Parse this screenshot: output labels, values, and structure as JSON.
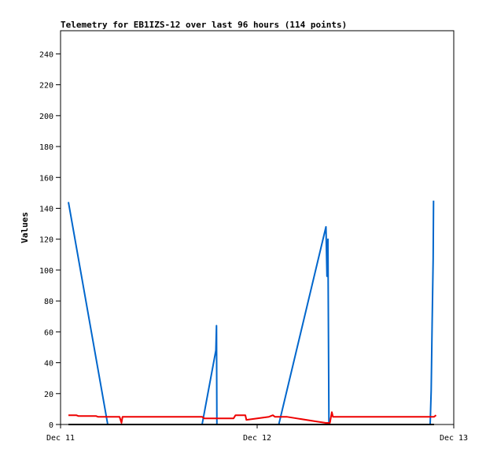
{
  "chart_data": {
    "type": "line",
    "title": "Telemetry for EB1IZS-12 over last 96 hours (114 points)",
    "xlabel": "",
    "ylabel": "Values",
    "ylim": [
      0,
      255
    ],
    "yticks": [
      0,
      20,
      40,
      60,
      80,
      100,
      120,
      140,
      160,
      180,
      200,
      220,
      240
    ],
    "xlim": [
      0,
      2
    ],
    "xticks": [
      {
        "value": 0,
        "label": "Dec 11"
      },
      {
        "value": 1,
        "label": "Dec 12"
      },
      {
        "value": 2,
        "label": "Dec 13"
      }
    ],
    "grid": false,
    "series": [
      {
        "color": "#0066cc",
        "points": [
          [
            0.04,
            144
          ],
          [
            0.24,
            0
          ],
          [
            0.72,
            0
          ],
          [
            0.79,
            48
          ],
          [
            0.793,
            64
          ],
          [
            0.795,
            0
          ],
          [
            1.11,
            0
          ],
          [
            1.35,
            128
          ],
          [
            1.355,
            96
          ],
          [
            1.36,
            120
          ],
          [
            1.365,
            0
          ],
          [
            1.39,
            0
          ],
          [
            1.88,
            0
          ],
          [
            1.885,
            22
          ],
          [
            1.89,
            65
          ],
          [
            1.895,
            107
          ],
          [
            1.897,
            145
          ]
        ]
      },
      {
        "color": "#ee0000",
        "points": [
          [
            0.04,
            6
          ],
          [
            0.08,
            6
          ],
          [
            0.09,
            5.5
          ],
          [
            0.18,
            5.5
          ],
          [
            0.19,
            5
          ],
          [
            0.3,
            5
          ],
          [
            0.31,
            1
          ],
          [
            0.315,
            5
          ],
          [
            0.72,
            5
          ],
          [
            0.73,
            4
          ],
          [
            0.88,
            4
          ],
          [
            0.89,
            6
          ],
          [
            0.94,
            6
          ],
          [
            0.945,
            3
          ],
          [
            1.06,
            5
          ],
          [
            1.08,
            6
          ],
          [
            1.09,
            5
          ],
          [
            1.15,
            5
          ],
          [
            1.2,
            4
          ],
          [
            1.3,
            2
          ],
          [
            1.35,
            1
          ],
          [
            1.37,
            1
          ],
          [
            1.38,
            8
          ],
          [
            1.385,
            5
          ],
          [
            1.4,
            5
          ],
          [
            1.9,
            5
          ],
          [
            1.91,
            6
          ]
        ]
      },
      {
        "color": "#000000",
        "points": [
          [
            0.04,
            0
          ],
          [
            1.9,
            0
          ]
        ]
      }
    ]
  }
}
